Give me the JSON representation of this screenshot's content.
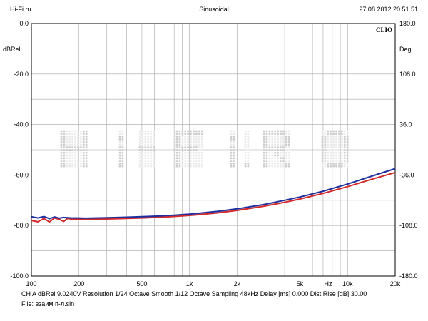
{
  "header": {
    "left": "Hi-Fi.ru",
    "center": "Sinusoidal",
    "right": "27.08.2012 20.51.51"
  },
  "brand": "CLIO",
  "footer": {
    "line1": "CH A   dBRel 9.0240V   Resolution 1/24 Octave   Smooth 1/12 Octave   Sampling 48kHz   Delay [ms] 0.000   Dist Rise [dB] 30.00",
    "line2": "File: взаим п-л.sin"
  },
  "colors": {
    "series1": "#d42a2a",
    "series2": "#1f2f9e",
    "watermark": "#cfcfcf"
  },
  "chart_data": {
    "type": "line",
    "xscale": "log",
    "xlim": [
      100,
      20000
    ],
    "ylim": [
      -100,
      0
    ],
    "y2lim": [
      -180,
      180
    ],
    "ylabel": "dBRel",
    "y2label": "Deg",
    "xunit_label": "Hz",
    "grid": true,
    "x_ticks": [
      {
        "v": 100,
        "label": "100"
      },
      {
        "v": 200,
        "label": "200"
      },
      {
        "v": 500,
        "label": "500"
      },
      {
        "v": 1000,
        "label": "1k"
      },
      {
        "v": 2000,
        "label": "2k"
      },
      {
        "v": 5000,
        "label": "5k"
      },
      {
        "v": 10000,
        "label": "10k"
      },
      {
        "v": 20000,
        "label": "20k"
      }
    ],
    "y_ticks": [
      {
        "v": 0,
        "label": "0.0"
      },
      {
        "v": -20,
        "label": "-20.0"
      },
      {
        "v": -40,
        "label": "-40.0"
      },
      {
        "v": -60,
        "label": "-60.0"
      },
      {
        "v": -80,
        "label": "-80.0"
      },
      {
        "v": -100,
        "label": "-100.0"
      }
    ],
    "y2_ticks": [
      {
        "v": 180,
        "label": "180.0"
      },
      {
        "v": 108,
        "label": "108.0"
      },
      {
        "v": 36,
        "label": "36.0"
      },
      {
        "v": -36,
        "label": "-36.0"
      },
      {
        "v": -108,
        "label": "-108.0"
      },
      {
        "v": -180,
        "label": "-180.0"
      }
    ],
    "series": [
      {
        "x": [
          100,
          110,
          120,
          130,
          140,
          150,
          160,
          170,
          180,
          200,
          220,
          250,
          300,
          350,
          400,
          500,
          600,
          700,
          800,
          1000,
          1200,
          1500,
          2000,
          3000,
          4000,
          5000,
          7000,
          10000,
          14000,
          20000
        ],
        "y": [
          -78.0,
          -78.5,
          -77.2,
          -78.6,
          -77.0,
          -77.5,
          -78.4,
          -77.1,
          -77.6,
          -77.4,
          -77.6,
          -77.5,
          -77.4,
          -77.3,
          -77.2,
          -77.0,
          -76.8,
          -76.6,
          -76.4,
          -76.0,
          -75.6,
          -75.0,
          -74.0,
          -72.3,
          -70.8,
          -69.5,
          -67.3,
          -64.6,
          -61.8,
          -59.0
        ]
      },
      {
        "x": [
          100,
          110,
          120,
          130,
          140,
          150,
          160,
          170,
          180,
          200,
          220,
          250,
          300,
          350,
          400,
          500,
          600,
          700,
          800,
          1000,
          1200,
          1500,
          2000,
          3000,
          4000,
          5000,
          7000,
          10000,
          14000,
          20000
        ],
        "y": [
          -76.5,
          -77.0,
          -76.4,
          -77.3,
          -76.6,
          -77.1,
          -76.8,
          -76.9,
          -77.0,
          -77.0,
          -77.1,
          -77.0,
          -76.9,
          -76.8,
          -76.7,
          -76.5,
          -76.3,
          -76.1,
          -75.9,
          -75.5,
          -75.0,
          -74.4,
          -73.4,
          -71.6,
          -70.0,
          -68.7,
          -66.4,
          -63.6,
          -60.6,
          -57.5
        ]
      }
    ]
  }
}
